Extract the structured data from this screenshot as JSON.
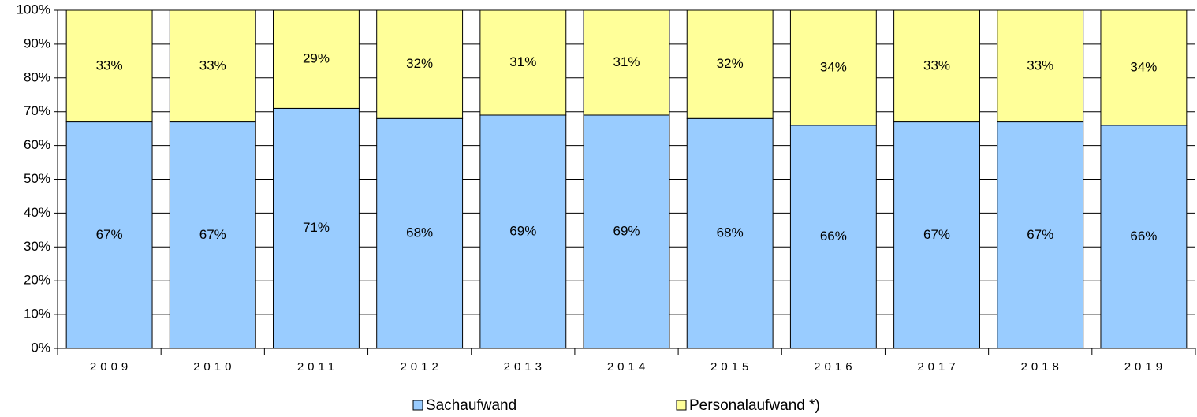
{
  "chart_data": {
    "type": "stacked_bar",
    "categories": [
      "2009",
      "2010",
      "2011",
      "2012",
      "2013",
      "2014",
      "2015",
      "2016",
      "2017",
      "2018",
      "2019"
    ],
    "series": [
      {
        "name": "Sachaufwand",
        "color": "#99ccff",
        "values": [
          67,
          67,
          71,
          68,
          69,
          69,
          68,
          66,
          67,
          67,
          66
        ],
        "value_labels": [
          "67%",
          "67%",
          "71%",
          "68%",
          "69%",
          "69%",
          "68%",
          "66%",
          "67%",
          "67%",
          "66%"
        ]
      },
      {
        "name": "Personalaufwand *)",
        "color": "#ffff99",
        "values": [
          33,
          33,
          29,
          32,
          31,
          31,
          32,
          34,
          33,
          33,
          34
        ],
        "value_labels": [
          "33%",
          "33%",
          "29%",
          "32%",
          "31%",
          "31%",
          "32%",
          "34%",
          "33%",
          "33%",
          "34%"
        ]
      }
    ],
    "ylim": [
      0,
      100
    ],
    "yticks": [
      {
        "value": 0,
        "label": "0%"
      },
      {
        "value": 10,
        "label": "10%"
      },
      {
        "value": 20,
        "label": "20%"
      },
      {
        "value": 30,
        "label": "30%"
      },
      {
        "value": 40,
        "label": "40%"
      },
      {
        "value": 50,
        "label": "50%"
      },
      {
        "value": 60,
        "label": "60%"
      },
      {
        "value": 70,
        "label": "70%"
      },
      {
        "value": 80,
        "label": "80%"
      },
      {
        "value": 90,
        "label": "90%"
      },
      {
        "value": 100,
        "label": "100%"
      }
    ],
    "grid": true,
    "legend": "bottom"
  }
}
